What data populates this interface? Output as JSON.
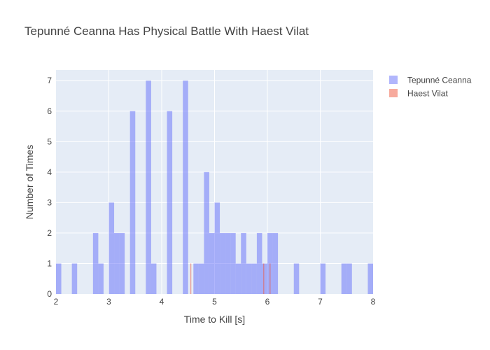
{
  "chart_data": {
    "type": "bar",
    "title": "Tepunné Ceanna Has Physical Battle With Haest Vilat",
    "xlabel": "Time to Kill [s]",
    "ylabel": "Number of Times",
    "xlim": [
      2,
      8
    ],
    "ylim": [
      0,
      7.35
    ],
    "bin_width": 0.1,
    "x_ticks": [
      "2",
      "3",
      "4",
      "5",
      "6",
      "7",
      "8"
    ],
    "y_ticks": [
      "0",
      "1",
      "2",
      "3",
      "4",
      "5",
      "6",
      "7"
    ],
    "grid": true,
    "legend_position": "top-right",
    "series": [
      {
        "name": "Tepunné Ceanna",
        "color": "#636efa",
        "opacity": 0.5,
        "bins": [
          {
            "x": 2.0,
            "count": 1
          },
          {
            "x": 2.3,
            "count": 1
          },
          {
            "x": 2.7,
            "count": 2
          },
          {
            "x": 2.8,
            "count": 1
          },
          {
            "x": 3.0,
            "count": 3
          },
          {
            "x": 3.1,
            "count": 2
          },
          {
            "x": 3.2,
            "count": 2
          },
          {
            "x": 3.4,
            "count": 6
          },
          {
            "x": 3.7,
            "count": 7
          },
          {
            "x": 3.8,
            "count": 1
          },
          {
            "x": 4.1,
            "count": 6
          },
          {
            "x": 4.4,
            "count": 7
          },
          {
            "x": 4.6,
            "count": 1
          },
          {
            "x": 4.7,
            "count": 1
          },
          {
            "x": 4.8,
            "count": 4
          },
          {
            "x": 4.9,
            "count": 2
          },
          {
            "x": 5.0,
            "count": 3
          },
          {
            "x": 5.1,
            "count": 2
          },
          {
            "x": 5.2,
            "count": 2
          },
          {
            "x": 5.3,
            "count": 2
          },
          {
            "x": 5.4,
            "count": 1
          },
          {
            "x": 5.5,
            "count": 2
          },
          {
            "x": 5.6,
            "count": 1
          },
          {
            "x": 5.7,
            "count": 1
          },
          {
            "x": 5.8,
            "count": 2
          },
          {
            "x": 5.9,
            "count": 1
          },
          {
            "x": 6.0,
            "count": 2
          },
          {
            "x": 6.1,
            "count": 2
          },
          {
            "x": 6.5,
            "count": 1
          },
          {
            "x": 7.0,
            "count": 1
          },
          {
            "x": 7.4,
            "count": 1
          },
          {
            "x": 7.5,
            "count": 1
          },
          {
            "x": 7.9,
            "count": 1
          }
        ]
      },
      {
        "name": "Haest Vilat",
        "color": "#ef553b",
        "opacity": 0.5,
        "bins": [
          {
            "x": 4.54,
            "count": 1,
            "width": 0.02
          },
          {
            "x": 5.92,
            "count": 1,
            "width": 0.02
          },
          {
            "x": 6.04,
            "count": 1,
            "width": 0.02
          }
        ]
      }
    ]
  }
}
